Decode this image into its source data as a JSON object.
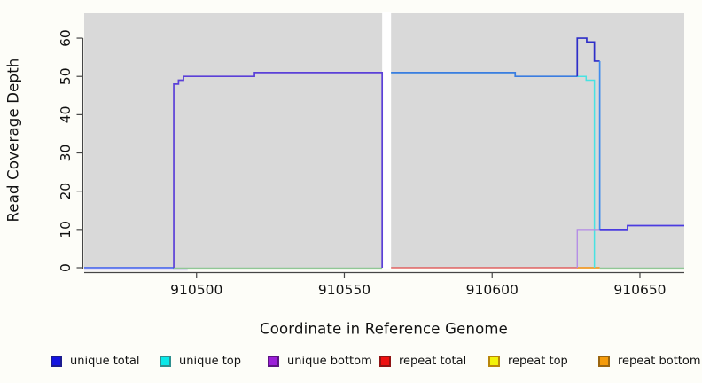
{
  "figure": {
    "background": "#fdfdf8",
    "plot_background": "#d9d9d9",
    "axis_color": "#454545",
    "tick_label_color": "#111111"
  },
  "axes": {
    "x_title": "Coordinate in Reference Genome",
    "y_title": "Read Coverage Depth"
  },
  "chart_data": {
    "type": "line",
    "title": "",
    "xlabel": "Coordinate in Reference Genome",
    "ylabel": "Read Coverage Depth",
    "xlim": [
      910462,
      910665
    ],
    "ylim": [
      0,
      66.5
    ],
    "x_ticks": [
      {
        "value": 910500,
        "label": "910500"
      },
      {
        "value": 910550,
        "label": "910550"
      },
      {
        "value": 910600,
        "label": "910600"
      },
      {
        "value": 910650,
        "label": "910650"
      }
    ],
    "y_ticks": [
      {
        "value": 0,
        "label": "0"
      },
      {
        "value": 10,
        "label": "10"
      },
      {
        "value": 20,
        "label": "20"
      },
      {
        "value": 30,
        "label": "30"
      },
      {
        "value": 40,
        "label": "40"
      },
      {
        "value": 50,
        "label": "50"
      },
      {
        "value": 60,
        "label": "60"
      }
    ],
    "grid": false,
    "legend_position": "bottom",
    "gap_regions": [
      {
        "x_start": 910562.8,
        "x_end": 910565.8,
        "color": "#ffffff"
      }
    ],
    "series": [
      {
        "name": "unique-bottom-zero-offset",
        "color": "#b7a8ec",
        "width": 1.4,
        "points": [
          [
            910462,
            -0.55
          ],
          [
            910497,
            -0.55
          ]
        ]
      },
      {
        "name": "baseline-left",
        "color": "#90c795",
        "width": 1.3,
        "points": [
          [
            910492,
            -0.1
          ],
          [
            910562.8,
            -0.1
          ]
        ]
      },
      {
        "name": "unique-total-left-zero",
        "color": "#3b5bee",
        "width": 1.6,
        "points": [
          [
            910462,
            0
          ],
          [
            910492.3,
            0
          ]
        ]
      },
      {
        "name": "unique-bottom-left",
        "color": "#5b40d8",
        "width": 1.7,
        "points": [
          [
            910492.3,
            0
          ],
          [
            910492.3,
            48
          ],
          [
            910493.9,
            48
          ],
          [
            910493.9,
            49
          ],
          [
            910495.6,
            49
          ],
          [
            910495.6,
            50
          ],
          [
            910519.6,
            50
          ],
          [
            910519.6,
            51
          ],
          [
            910562.8,
            51
          ],
          [
            910562.8,
            0
          ]
        ]
      },
      {
        "name": "repeat-total",
        "color": "#e04848",
        "width": 1.2,
        "points": [
          [
            910565.8,
            0
          ],
          [
            910629,
            0
          ]
        ]
      },
      {
        "name": "repeat-bottom",
        "color": "#f09a28",
        "width": 1.7,
        "points": [
          [
            910628.8,
            0
          ],
          [
            910636.4,
            0
          ]
        ]
      },
      {
        "name": "baseline-right",
        "color": "#90c795",
        "width": 1.3,
        "points": [
          [
            910636.4,
            -0.1
          ],
          [
            910665,
            -0.1
          ]
        ]
      },
      {
        "name": "unique-top-right",
        "color": "#48e2e2",
        "width": 1.5,
        "points": [
          [
            910565.8,
            51
          ],
          [
            910607.8,
            51
          ],
          [
            910607.8,
            50
          ],
          [
            910631.8,
            50
          ],
          [
            910631.8,
            49
          ],
          [
            910634.6,
            49
          ],
          [
            910634.6,
            0
          ]
        ]
      },
      {
        "name": "unique-bottom-right",
        "color": "#b289e6",
        "width": 1.3,
        "points": [
          [
            910628.8,
            0
          ],
          [
            910628.8,
            10
          ],
          [
            910636.4,
            10
          ]
        ]
      },
      {
        "name": "unique-total-right",
        "color": "#3b7de0",
        "width": 1.7,
        "points": [
          [
            910565.8,
            51
          ],
          [
            910607.8,
            51
          ],
          [
            910607.8,
            50
          ],
          [
            910628.8,
            50
          ]
        ]
      },
      {
        "name": "unique-total-spike",
        "color": "#2e2ec8",
        "width": 1.7,
        "points": [
          [
            910628.8,
            50
          ],
          [
            910628.8,
            60
          ],
          [
            910632,
            60
          ],
          [
            910632,
            59
          ],
          [
            910634.6,
            59
          ],
          [
            910634.6,
            54
          ],
          [
            910636.4,
            54
          ]
        ]
      },
      {
        "name": "unique-total-drop",
        "color": "#3e8cee",
        "width": 1.7,
        "points": [
          [
            910636.4,
            54
          ],
          [
            910636.4,
            10
          ]
        ]
      },
      {
        "name": "unique-total-tail",
        "color": "#4b3ce0",
        "width": 1.8,
        "points": [
          [
            910636.4,
            10
          ],
          [
            910645.8,
            10
          ],
          [
            910645.8,
            11
          ],
          [
            910665,
            11
          ]
        ]
      }
    ]
  },
  "legend": {
    "items": [
      {
        "label": "unique total",
        "fill": "#1414e0",
        "border": "#1b1b8f"
      },
      {
        "label": "unique top",
        "fill": "#0ae8e8",
        "border": "#2e8f8f"
      },
      {
        "label": "unique bottom",
        "fill": "#9b1fd8",
        "border": "#5c1482"
      },
      {
        "label": "repeat total",
        "fill": "#ee1111",
        "border": "#8f1414"
      },
      {
        "label": "repeat top",
        "fill": "#f2f20a",
        "border": "#b8860b"
      },
      {
        "label": "repeat bottom",
        "fill": "#f59b0a",
        "border": "#9a6510"
      }
    ]
  }
}
